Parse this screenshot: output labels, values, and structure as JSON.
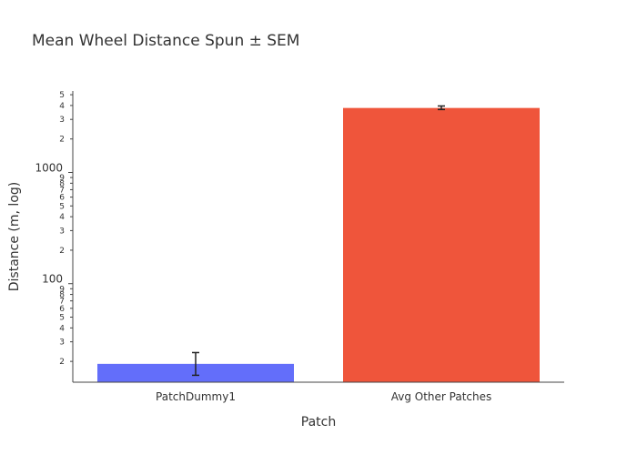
{
  "chart_data": {
    "type": "bar",
    "title": "Mean Wheel Distance Spun ± SEM",
    "xlabel": "Patch",
    "ylabel": "Distance (m, log)",
    "y_scale": "log",
    "ylim": [
      13,
      5400
    ],
    "categories": [
      "PatchDummy1",
      "Avg Other Patches"
    ],
    "values": [
      19,
      3800
    ],
    "error": [
      {
        "low": 15,
        "high": 24
      },
      {
        "low": 3680,
        "high": 3960
      }
    ],
    "bar_colors": [
      "#636efa",
      "#ef553b"
    ],
    "y_major_ticks": [
      {
        "value": 100,
        "label": "100"
      },
      {
        "value": 1000,
        "label": "1000"
      }
    ],
    "y_minor_ticks": [
      {
        "value": 20,
        "label": "2"
      },
      {
        "value": 30,
        "label": "3"
      },
      {
        "value": 40,
        "label": "4"
      },
      {
        "value": 50,
        "label": "5"
      },
      {
        "value": 60,
        "label": "6"
      },
      {
        "value": 70,
        "label": "7"
      },
      {
        "value": 80,
        "label": "8"
      },
      {
        "value": 90,
        "label": "9"
      },
      {
        "value": 200,
        "label": "2"
      },
      {
        "value": 300,
        "label": "3"
      },
      {
        "value": 400,
        "label": "4"
      },
      {
        "value": 500,
        "label": "5"
      },
      {
        "value": 600,
        "label": "6"
      },
      {
        "value": 700,
        "label": "7"
      },
      {
        "value": 800,
        "label": "8"
      },
      {
        "value": 900,
        "label": "9"
      },
      {
        "value": 2000,
        "label": "2"
      },
      {
        "value": 3000,
        "label": "3"
      },
      {
        "value": 4000,
        "label": "4"
      },
      {
        "value": 5000,
        "label": "5"
      }
    ],
    "grid": false,
    "legend": "none"
  }
}
